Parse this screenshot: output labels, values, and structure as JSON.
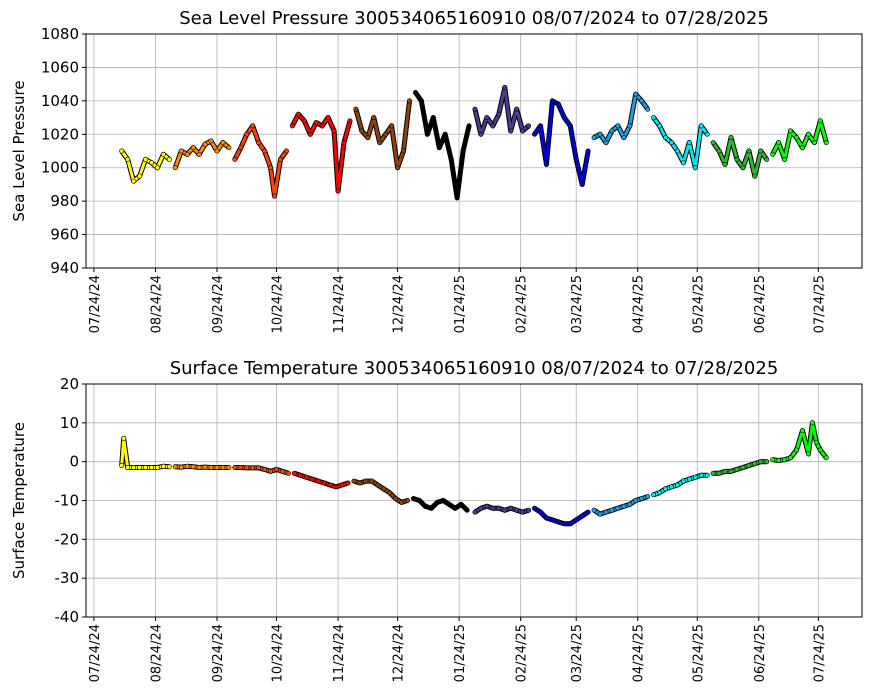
{
  "chart_data": [
    {
      "type": "scatter",
      "title": "Sea Level Pressure 300534065160910  08/07/2024 to 07/28/2025",
      "ylabel": "Sea Level Pressure",
      "xlim": [
        "2024-07-20",
        "2025-08-15"
      ],
      "ylim": [
        940,
        1080
      ],
      "yticks": [
        940,
        960,
        980,
        1000,
        1020,
        1040,
        1060,
        1080
      ],
      "grid": true,
      "xticks": [
        {
          "value": "2024-07-24",
          "label": "07/24/24"
        },
        {
          "value": "2024-08-24",
          "label": "08/24/24"
        },
        {
          "value": "2024-09-24",
          "label": "09/24/24"
        },
        {
          "value": "2024-10-24",
          "label": "10/24/24"
        },
        {
          "value": "2024-11-24",
          "label": "11/24/24"
        },
        {
          "value": "2024-12-24",
          "label": "12/24/24"
        },
        {
          "value": "2025-01-24",
          "label": "01/24/25"
        },
        {
          "value": "2025-02-24",
          "label": "02/24/25"
        },
        {
          "value": "2025-03-24",
          "label": "03/24/25"
        },
        {
          "value": "2025-04-24",
          "label": "04/24/25"
        },
        {
          "value": "2025-05-24",
          "label": "05/24/25"
        },
        {
          "value": "2025-06-24",
          "label": "06/24/25"
        },
        {
          "value": "2025-07-24",
          "label": "07/24/25"
        }
      ],
      "series": [
        {
          "color": "#ffff00",
          "x": [
            "2024-08-07",
            "2024-08-10",
            "2024-08-13",
            "2024-08-16",
            "2024-08-19",
            "2024-08-22",
            "2024-08-25",
            "2024-08-28",
            "2024-08-31"
          ],
          "values": [
            1010,
            1005,
            992,
            995,
            1005,
            1003,
            1000,
            1008,
            1005
          ]
        },
        {
          "color": "#ff8c00",
          "x": [
            "2024-09-03",
            "2024-09-06",
            "2024-09-09",
            "2024-09-12",
            "2024-09-15",
            "2024-09-18",
            "2024-09-21",
            "2024-09-24",
            "2024-09-27",
            "2024-09-30"
          ],
          "values": [
            1000,
            1010,
            1008,
            1012,
            1008,
            1014,
            1016,
            1010,
            1015,
            1012
          ]
        },
        {
          "color": "#ff4500",
          "x": [
            "2024-10-03",
            "2024-10-06",
            "2024-10-09",
            "2024-10-12",
            "2024-10-15",
            "2024-10-18",
            "2024-10-21",
            "2024-10-23",
            "2024-10-26",
            "2024-10-29"
          ],
          "values": [
            1005,
            1012,
            1020,
            1025,
            1015,
            1010,
            1000,
            983,
            1005,
            1010
          ]
        },
        {
          "color": "#ff0000",
          "x": [
            "2024-11-01",
            "2024-11-04",
            "2024-11-07",
            "2024-11-10",
            "2024-11-13",
            "2024-11-16",
            "2024-11-19",
            "2024-11-22",
            "2024-11-24",
            "2024-11-27",
            "2024-11-30"
          ],
          "values": [
            1025,
            1032,
            1028,
            1020,
            1027,
            1025,
            1030,
            1022,
            986,
            1015,
            1028
          ]
        },
        {
          "color": "#8b4513",
          "x": [
            "2024-12-03",
            "2024-12-06",
            "2024-12-09",
            "2024-12-12",
            "2024-12-15",
            "2024-12-18",
            "2024-12-21",
            "2024-12-24",
            "2024-12-27",
            "2024-12-30"
          ],
          "values": [
            1035,
            1022,
            1018,
            1030,
            1015,
            1020,
            1025,
            1000,
            1010,
            1040
          ]
        },
        {
          "color": "#000000",
          "x": [
            "2025-01-02",
            "2025-01-05",
            "2025-01-08",
            "2025-01-11",
            "2025-01-14",
            "2025-01-17",
            "2025-01-20",
            "2025-01-23",
            "2025-01-26",
            "2025-01-29"
          ],
          "values": [
            1045,
            1040,
            1020,
            1030,
            1012,
            1020,
            1005,
            982,
            1010,
            1025
          ]
        },
        {
          "color": "#483d8b",
          "x": [
            "2025-02-01",
            "2025-02-04",
            "2025-02-07",
            "2025-02-10",
            "2025-02-13",
            "2025-02-16",
            "2025-02-19",
            "2025-02-22",
            "2025-02-25",
            "2025-02-28"
          ],
          "values": [
            1035,
            1020,
            1030,
            1025,
            1032,
            1048,
            1022,
            1035,
            1022,
            1025
          ]
        },
        {
          "color": "#0000e0",
          "x": [
            "2025-03-03",
            "2025-03-06",
            "2025-03-09",
            "2025-03-12",
            "2025-03-15",
            "2025-03-18",
            "2025-03-21",
            "2025-03-24",
            "2025-03-27",
            "2025-03-30"
          ],
          "values": [
            1020,
            1025,
            1002,
            1040,
            1038,
            1030,
            1025,
            1005,
            990,
            1010
          ]
        },
        {
          "color": "#1ea0e0",
          "x": [
            "2025-04-02",
            "2025-04-05",
            "2025-04-08",
            "2025-04-11",
            "2025-04-14",
            "2025-04-17",
            "2025-04-20",
            "2025-04-23",
            "2025-04-26",
            "2025-04-29"
          ],
          "values": [
            1018,
            1020,
            1015,
            1022,
            1025,
            1018,
            1025,
            1044,
            1040,
            1035
          ]
        },
        {
          "color": "#00e5ee",
          "x": [
            "2025-05-02",
            "2025-05-05",
            "2025-05-08",
            "2025-05-11",
            "2025-05-14",
            "2025-05-17",
            "2025-05-20",
            "2025-05-23",
            "2025-05-26",
            "2025-05-29"
          ],
          "values": [
            1030,
            1025,
            1018,
            1015,
            1010,
            1003,
            1015,
            1000,
            1025,
            1020
          ]
        },
        {
          "color": "#32b432",
          "x": [
            "2025-06-01",
            "2025-06-04",
            "2025-06-07",
            "2025-06-10",
            "2025-06-13",
            "2025-06-16",
            "2025-06-19",
            "2025-06-22",
            "2025-06-25",
            "2025-06-28"
          ],
          "values": [
            1015,
            1010,
            1002,
            1018,
            1005,
            1000,
            1010,
            995,
            1010,
            1005
          ]
        },
        {
          "color": "#00ff00",
          "x": [
            "2025-07-01",
            "2025-07-04",
            "2025-07-07",
            "2025-07-10",
            "2025-07-13",
            "2025-07-16",
            "2025-07-19",
            "2025-07-22",
            "2025-07-25",
            "2025-07-28"
          ],
          "values": [
            1008,
            1015,
            1005,
            1022,
            1018,
            1012,
            1020,
            1015,
            1028,
            1015
          ]
        }
      ]
    },
    {
      "type": "scatter",
      "title": "Surface Temperature 300534065160910  08/07/2024 to 07/28/2025",
      "ylabel": "Surface Temperature",
      "xlim": [
        "2024-07-20",
        "2025-08-15"
      ],
      "ylim": [
        -40,
        20
      ],
      "yticks": [
        -40,
        -30,
        -20,
        -10,
        0,
        10,
        20
      ],
      "grid": true,
      "xticks": [
        {
          "value": "2024-07-24",
          "label": "07/24/24"
        },
        {
          "value": "2024-08-24",
          "label": "08/24/24"
        },
        {
          "value": "2024-09-24",
          "label": "09/24/24"
        },
        {
          "value": "2024-10-24",
          "label": "10/24/24"
        },
        {
          "value": "2024-11-24",
          "label": "11/24/24"
        },
        {
          "value": "2024-12-24",
          "label": "12/24/24"
        },
        {
          "value": "2025-01-24",
          "label": "01/24/25"
        },
        {
          "value": "2025-02-24",
          "label": "02/24/25"
        },
        {
          "value": "2025-03-24",
          "label": "03/24/25"
        },
        {
          "value": "2025-04-24",
          "label": "04/24/25"
        },
        {
          "value": "2025-05-24",
          "label": "05/24/25"
        },
        {
          "value": "2025-06-24",
          "label": "06/24/25"
        },
        {
          "value": "2025-07-24",
          "label": "07/24/25"
        }
      ],
      "series": [
        {
          "color": "#ffff00",
          "x": [
            "2024-08-07",
            "2024-08-08",
            "2024-08-10",
            "2024-08-13",
            "2024-08-16",
            "2024-08-19",
            "2024-08-22",
            "2024-08-25",
            "2024-08-28",
            "2024-08-31"
          ],
          "values": [
            -1,
            6,
            -1.5,
            -1.5,
            -1.5,
            -1.5,
            -1.5,
            -1.5,
            -1.2,
            -1.3
          ]
        },
        {
          "color": "#ff8c00",
          "x": [
            "2024-09-03",
            "2024-09-06",
            "2024-09-09",
            "2024-09-12",
            "2024-09-15",
            "2024-09-18",
            "2024-09-21",
            "2024-09-24",
            "2024-09-27",
            "2024-09-30"
          ],
          "values": [
            -1.3,
            -1.4,
            -1.2,
            -1.3,
            -1.5,
            -1.4,
            -1.5,
            -1.5,
            -1.5,
            -1.5
          ]
        },
        {
          "color": "#ff4500",
          "x": [
            "2024-10-03",
            "2024-10-06",
            "2024-10-09",
            "2024-10-12",
            "2024-10-15",
            "2024-10-18",
            "2024-10-21",
            "2024-10-24",
            "2024-10-27",
            "2024-10-30"
          ],
          "values": [
            -1.5,
            -1.5,
            -1.6,
            -1.6,
            -1.6,
            -2,
            -2.5,
            -2,
            -2.5,
            -3
          ]
        },
        {
          "color": "#ff0000",
          "x": [
            "2024-11-02",
            "2024-11-05",
            "2024-11-08",
            "2024-11-11",
            "2024-11-14",
            "2024-11-17",
            "2024-11-20",
            "2024-11-23",
            "2024-11-26",
            "2024-11-29"
          ],
          "values": [
            -3,
            -3.5,
            -4,
            -4.5,
            -5,
            -5.5,
            -6,
            -6.5,
            -6,
            -5.5
          ]
        },
        {
          "color": "#8b4513",
          "x": [
            "2024-12-02",
            "2024-12-05",
            "2024-12-08",
            "2024-12-11",
            "2024-12-14",
            "2024-12-17",
            "2024-12-20",
            "2024-12-23",
            "2024-12-26",
            "2024-12-29"
          ],
          "values": [
            -5,
            -5.5,
            -5,
            -5,
            -6,
            -7,
            -8,
            -9.5,
            -10.5,
            -10
          ]
        },
        {
          "color": "#000000",
          "x": [
            "2025-01-01",
            "2025-01-04",
            "2025-01-07",
            "2025-01-10",
            "2025-01-13",
            "2025-01-16",
            "2025-01-19",
            "2025-01-22",
            "2025-01-25",
            "2025-01-28"
          ],
          "values": [
            -9.5,
            -10,
            -11.5,
            -12,
            -10.5,
            -10,
            -11,
            -12,
            -11,
            -12.5
          ]
        },
        {
          "color": "#483d8b",
          "x": [
            "2025-02-01",
            "2025-02-04",
            "2025-02-07",
            "2025-02-10",
            "2025-02-13",
            "2025-02-16",
            "2025-02-19",
            "2025-02-22",
            "2025-02-25",
            "2025-02-28"
          ],
          "values": [
            -13,
            -12,
            -11.5,
            -12,
            -12,
            -12.5,
            -12,
            -12.5,
            -13,
            -12.5
          ]
        },
        {
          "color": "#0000e0",
          "x": [
            "2025-03-03",
            "2025-03-06",
            "2025-03-09",
            "2025-03-12",
            "2025-03-15",
            "2025-03-18",
            "2025-03-21",
            "2025-03-24",
            "2025-03-27",
            "2025-03-30"
          ],
          "values": [
            -12,
            -13,
            -14.5,
            -15,
            -15.5,
            -16,
            -16,
            -15,
            -14,
            -13
          ]
        },
        {
          "color": "#1ea0e0",
          "x": [
            "2025-04-02",
            "2025-04-05",
            "2025-04-08",
            "2025-04-11",
            "2025-04-14",
            "2025-04-17",
            "2025-04-20",
            "2025-04-23",
            "2025-04-26",
            "2025-04-29"
          ],
          "values": [
            -12.5,
            -13.5,
            -13,
            -12.5,
            -12,
            -11.5,
            -11,
            -10,
            -9.5,
            -9
          ]
        },
        {
          "color": "#00e5ee",
          "x": [
            "2025-05-02",
            "2025-05-05",
            "2025-05-08",
            "2025-05-11",
            "2025-05-14",
            "2025-05-17",
            "2025-05-20",
            "2025-05-23",
            "2025-05-26",
            "2025-05-29"
          ],
          "values": [
            -8.5,
            -8,
            -7,
            -6.5,
            -6,
            -5,
            -4.5,
            -4,
            -3.5,
            -3.5
          ]
        },
        {
          "color": "#32b432",
          "x": [
            "2025-06-01",
            "2025-06-04",
            "2025-06-07",
            "2025-06-10",
            "2025-06-13",
            "2025-06-16",
            "2025-06-19",
            "2025-06-22",
            "2025-06-25",
            "2025-06-28"
          ],
          "values": [
            -3,
            -3,
            -2.5,
            -2.5,
            -2,
            -1.5,
            -1,
            -0.5,
            0,
            0
          ]
        },
        {
          "color": "#00ff00",
          "x": [
            "2025-07-01",
            "2025-07-04",
            "2025-07-07",
            "2025-07-10",
            "2025-07-13",
            "2025-07-16",
            "2025-07-19",
            "2025-07-21",
            "2025-07-23",
            "2025-07-25",
            "2025-07-28"
          ],
          "values": [
            0.5,
            0.3,
            0.5,
            1,
            3,
            8,
            2,
            10,
            5,
            3,
            1
          ]
        }
      ]
    }
  ]
}
